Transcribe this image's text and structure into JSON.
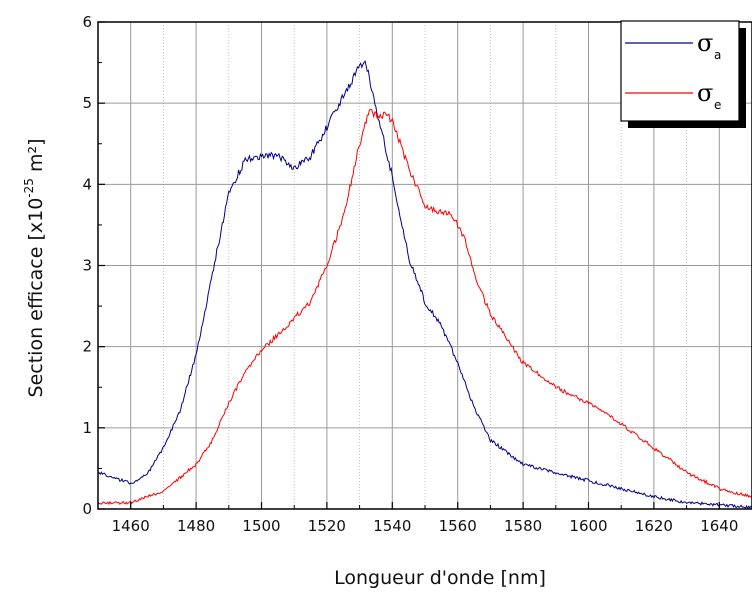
{
  "chart_data": {
    "type": "line",
    "xlabel": "Longueur d'onde [nm]",
    "ylabel_parts": {
      "prefix": "Section efficace [x10",
      "exponent": "-25",
      "suffix": " m²]"
    },
    "xlim": [
      1450,
      1650
    ],
    "ylim": [
      0,
      6
    ],
    "x_ticks": [
      1460,
      1480,
      1500,
      1520,
      1540,
      1560,
      1580,
      1600,
      1620,
      1640
    ],
    "y_ticks": [
      0,
      1,
      2,
      3,
      4,
      5,
      6
    ],
    "grid": true,
    "legend_position": "top-right",
    "series": [
      {
        "name": "σ",
        "subscript": "a",
        "color": "#00008b",
        "x": [
          1450,
          1455,
          1460,
          1465,
          1470,
          1475,
          1480,
          1485,
          1490,
          1495,
          1500,
          1505,
          1510,
          1515,
          1520,
          1525,
          1530,
          1532,
          1535,
          1540,
          1545,
          1550,
          1555,
          1560,
          1565,
          1570,
          1580,
          1590,
          1600,
          1610,
          1620,
          1630,
          1640,
          1650
        ],
        "y": [
          0.45,
          0.38,
          0.32,
          0.42,
          0.75,
          1.2,
          1.9,
          2.9,
          3.9,
          4.3,
          4.35,
          4.35,
          4.2,
          4.35,
          4.7,
          5.1,
          5.45,
          5.5,
          4.95,
          4.1,
          3.1,
          2.55,
          2.25,
          1.8,
          1.25,
          0.85,
          0.55,
          0.45,
          0.35,
          0.25,
          0.15,
          0.08,
          0.05,
          0.02
        ]
      },
      {
        "name": "σ",
        "subscript": "e",
        "color": "#ff0000",
        "x": [
          1450,
          1460,
          1470,
          1480,
          1485,
          1490,
          1495,
          1500,
          1505,
          1510,
          1515,
          1520,
          1525,
          1530,
          1533,
          1535,
          1538,
          1540,
          1545,
          1550,
          1555,
          1558,
          1562,
          1565,
          1570,
          1580,
          1590,
          1600,
          1610,
          1620,
          1630,
          1640,
          1650
        ],
        "y": [
          0.07,
          0.08,
          0.22,
          0.55,
          0.85,
          1.3,
          1.7,
          1.95,
          2.15,
          2.35,
          2.55,
          3.0,
          3.6,
          4.5,
          4.9,
          4.85,
          4.85,
          4.8,
          4.2,
          3.75,
          3.65,
          3.65,
          3.35,
          2.9,
          2.4,
          1.8,
          1.5,
          1.3,
          1.05,
          0.75,
          0.45,
          0.25,
          0.15
        ]
      }
    ]
  }
}
